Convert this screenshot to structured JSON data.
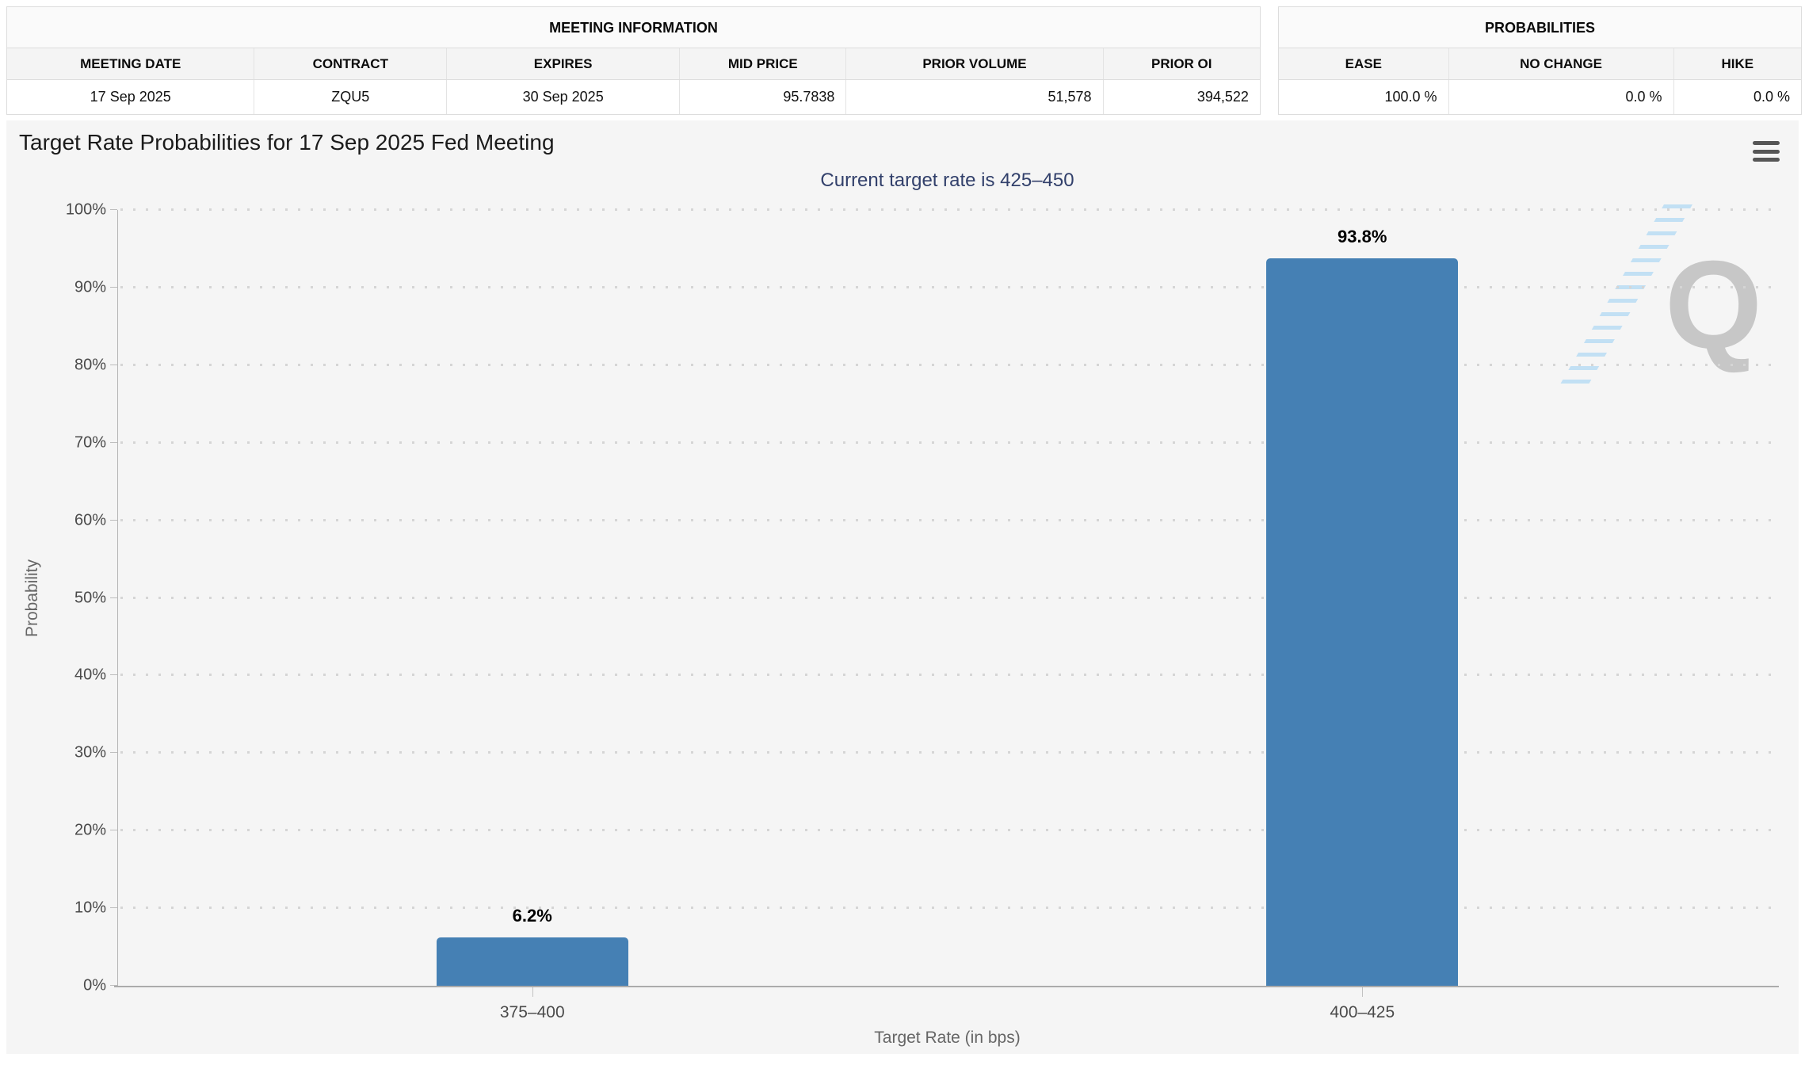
{
  "meeting_info": {
    "title": "MEETING INFORMATION",
    "columns": [
      {
        "label": "MEETING DATE",
        "value": "17 Sep 2025"
      },
      {
        "label": "CONTRACT",
        "value": "ZQU5"
      },
      {
        "label": "EXPIRES",
        "value": "30 Sep 2025"
      },
      {
        "label": "MID PRICE",
        "value": "95.7838"
      },
      {
        "label": "PRIOR VOLUME",
        "value": "51,578"
      },
      {
        "label": "PRIOR OI",
        "value": "394,522"
      }
    ]
  },
  "probabilities": {
    "title": "PROBABILITIES",
    "columns": [
      {
        "label": "EASE",
        "value": "100.0 %"
      },
      {
        "label": "NO CHANGE",
        "value": "0.0 %"
      },
      {
        "label": "HIKE",
        "value": "0.0 %"
      }
    ]
  },
  "chart": {
    "menu_icon": "hamburger-icon",
    "watermark_letter": "Q"
  },
  "chart_data": {
    "type": "bar",
    "title": "Target Rate Probabilities for 17 Sep 2025 Fed Meeting",
    "subtitle": "Current target rate is 425–450",
    "categories": [
      "375–400",
      "400–425"
    ],
    "values": [
      6.2,
      93.8
    ],
    "value_labels": [
      "6.2%",
      "93.8%"
    ],
    "xlabel": "Target Rate (in bps)",
    "ylabel": "Probability",
    "ylim": [
      0,
      100
    ],
    "ytick_step": 10,
    "ytick_suffix": "%",
    "bar_color": "#4580b4",
    "subtitle_color": "#32406b",
    "grid": "dotted horizontal",
    "legend": "none"
  }
}
